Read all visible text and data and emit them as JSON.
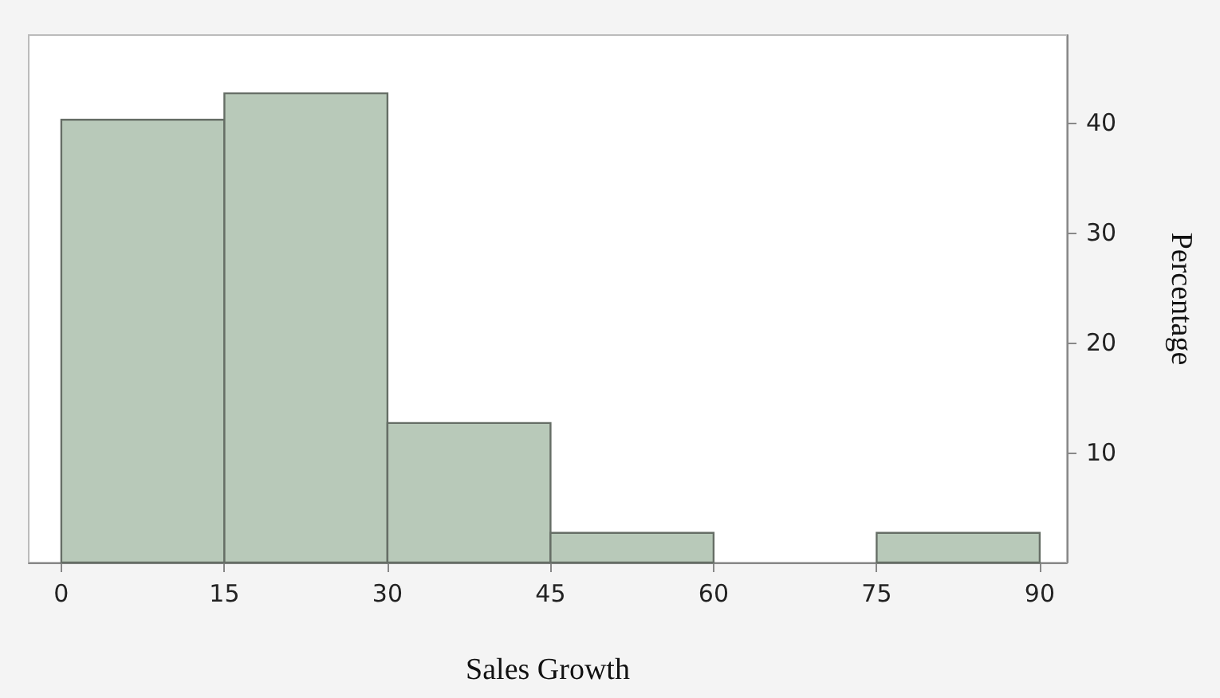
{
  "chart_data": {
    "type": "histogram",
    "xlabel": "Sales Growth",
    "ylabel": "Percentage",
    "bins": [
      0,
      15,
      30,
      45,
      60,
      75,
      90
    ],
    "values": [
      40.3,
      42.7,
      12.7,
      2.7,
      0,
      2.7
    ],
    "color": "#b8c9b9",
    "xlim": [
      -3,
      92.5
    ],
    "ylim": [
      0,
      48
    ],
    "xticks": [
      0,
      15,
      30,
      45,
      60,
      75,
      90
    ],
    "yticks": [
      10,
      20,
      30,
      40
    ],
    "grid": false
  }
}
